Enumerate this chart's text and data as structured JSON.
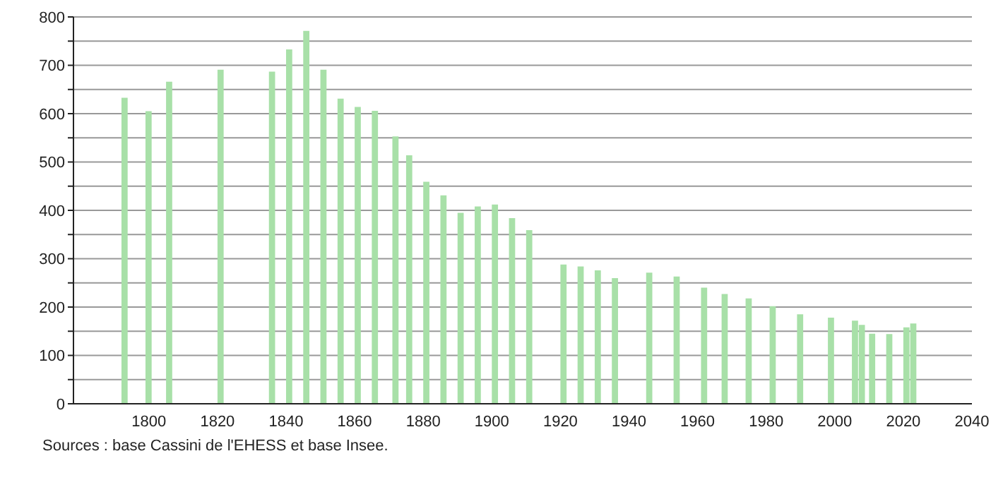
{
  "chart_data": {
    "type": "bar",
    "x": [
      1793,
      1800,
      1806,
      1821,
      1836,
      1841,
      1846,
      1851,
      1856,
      1861,
      1866,
      1872,
      1876,
      1881,
      1886,
      1891,
      1896,
      1901,
      1906,
      1911,
      1921,
      1926,
      1931,
      1936,
      1946,
      1954,
      1962,
      1968,
      1975,
      1982,
      1990,
      1999,
      2006,
      2008,
      2011,
      2016,
      2021,
      2023
    ],
    "values": [
      633,
      605,
      666,
      691,
      687,
      733,
      771,
      691,
      631,
      614,
      606,
      553,
      514,
      459,
      431,
      395,
      408,
      412,
      384,
      359,
      288,
      284,
      276,
      260,
      271,
      263,
      240,
      227,
      218,
      202,
      185,
      178,
      172,
      163,
      145,
      144,
      158,
      166
    ],
    "color": "#a8e0a8",
    "xlim": [
      1778,
      2040
    ],
    "xticks": [
      1800,
      1820,
      1840,
      1860,
      1880,
      1900,
      1920,
      1940,
      1960,
      1980,
      2000,
      2020,
      2040
    ],
    "ylim": [
      0,
      800
    ],
    "yticks": [
      0,
      {
        "value": 50,
        "label": null
      },
      100,
      {
        "value": 150,
        "label": null
      },
      200,
      {
        "value": 250,
        "label": null
      },
      300,
      {
        "value": 350,
        "label": null
      },
      400,
      {
        "value": 450,
        "label": null
      },
      500,
      {
        "value": 550,
        "label": null
      },
      600,
      {
        "value": 650,
        "label": null
      },
      700,
      {
        "value": 750,
        "label": null
      },
      800
    ],
    "grid": "y",
    "annotations": [
      "Sources : base Cassini de l'EHESS et base Insee."
    ]
  }
}
